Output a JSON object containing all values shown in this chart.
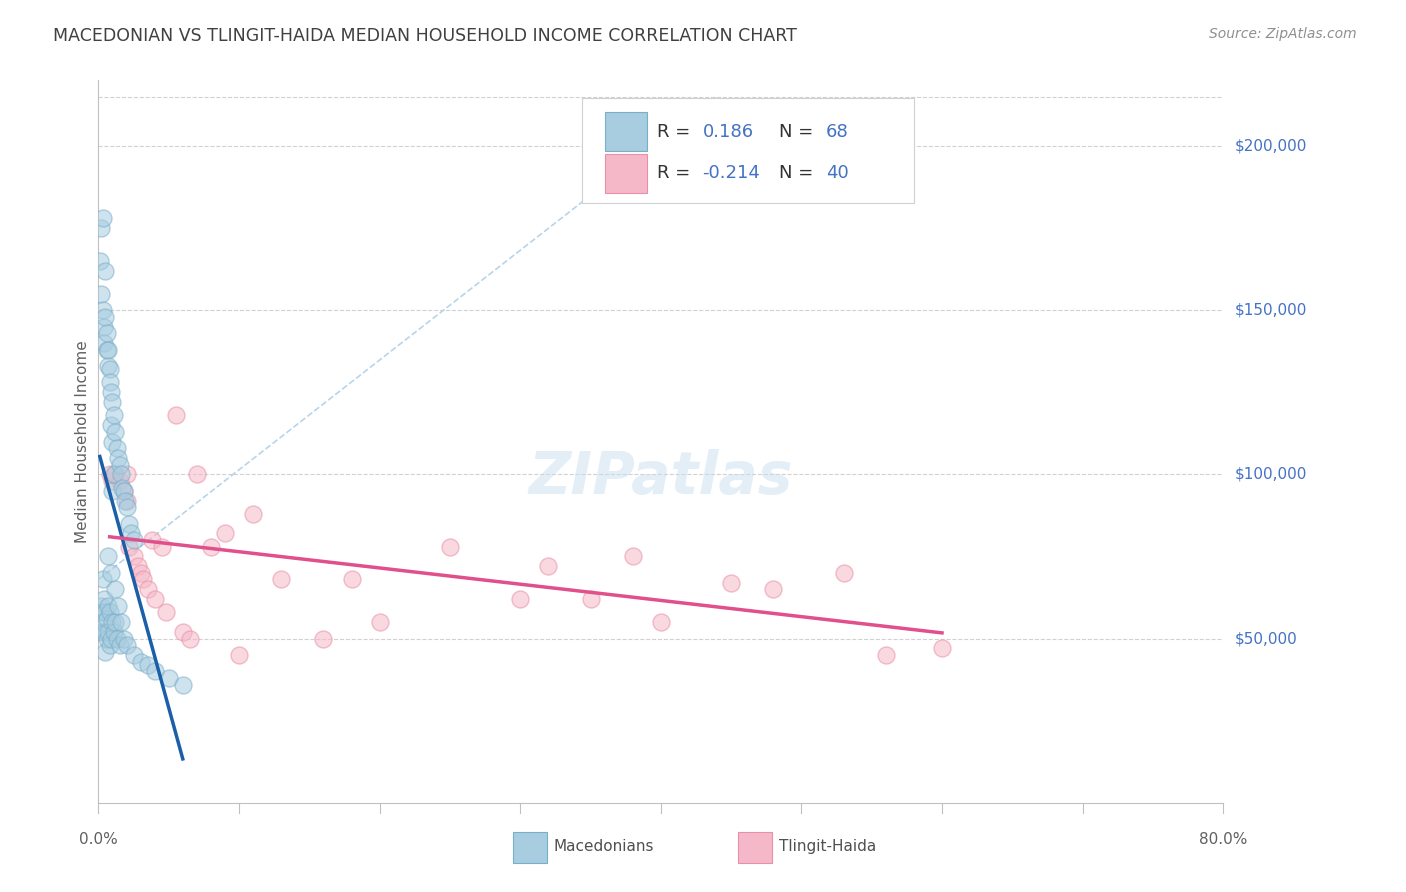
{
  "title": "MACEDONIAN VS TLINGIT-HAIDA MEDIAN HOUSEHOLD INCOME CORRELATION CHART",
  "source": "Source: ZipAtlas.com",
  "ylabel": "Median Household Income",
  "xlim": [
    0.0,
    0.8
  ],
  "ylim": [
    0,
    220000
  ],
  "ytick_vals": [
    50000,
    100000,
    150000,
    200000
  ],
  "ytick_labels": [
    "$50,000",
    "$100,000",
    "$150,000",
    "$200,000"
  ],
  "top_line_y": 215000,
  "mac_color_fill": "#a8cce0",
  "mac_color_edge": "#7aafc8",
  "mac_line_color": "#1a5fa8",
  "tlin_color_fill": "#f5b8c8",
  "tlin_color_edge": "#e890a8",
  "tlin_line_color": "#e0508c",
  "dash_color": "#b0d0e8",
  "grid_color": "#cccccc",
  "bg_color": "#ffffff",
  "title_color": "#404040",
  "right_label_color": "#4472c4",
  "source_color": "#909090",
  "leg_r_color": "#333333",
  "leg_val_color": "#4472c4",
  "mac_scatter_x": [
    0.001,
    0.001,
    0.002,
    0.002,
    0.002,
    0.002,
    0.003,
    0.003,
    0.003,
    0.003,
    0.004,
    0.004,
    0.004,
    0.005,
    0.005,
    0.005,
    0.005,
    0.005,
    0.006,
    0.006,
    0.006,
    0.006,
    0.007,
    0.007,
    0.007,
    0.007,
    0.008,
    0.008,
    0.008,
    0.008,
    0.009,
    0.009,
    0.009,
    0.01,
    0.01,
    0.01,
    0.01,
    0.011,
    0.011,
    0.011,
    0.012,
    0.012,
    0.013,
    0.013,
    0.014,
    0.015,
    0.015,
    0.016,
    0.017,
    0.018,
    0.019,
    0.02,
    0.022,
    0.023,
    0.025,
    0.007,
    0.009,
    0.012,
    0.014,
    0.016,
    0.018,
    0.02,
    0.025,
    0.03,
    0.035,
    0.04,
    0.05,
    0.06
  ],
  "mac_scatter_y": [
    165000,
    58000,
    175000,
    155000,
    60000,
    52000,
    178000,
    150000,
    68000,
    55000,
    145000,
    140000,
    62000,
    162000,
    148000,
    58000,
    52000,
    46000,
    143000,
    138000,
    56000,
    50000,
    138000,
    133000,
    60000,
    52000,
    132000,
    128000,
    58000,
    48000,
    125000,
    115000,
    50000,
    122000,
    110000,
    95000,
    55000,
    118000,
    100000,
    52000,
    113000,
    55000,
    108000,
    50000,
    105000,
    103000,
    48000,
    100000,
    96000,
    95000,
    92000,
    90000,
    85000,
    82000,
    80000,
    75000,
    70000,
    65000,
    60000,
    55000,
    50000,
    48000,
    45000,
    43000,
    42000,
    40000,
    38000,
    36000
  ],
  "tlin_scatter_x": [
    0.008,
    0.01,
    0.012,
    0.015,
    0.018,
    0.02,
    0.02,
    0.022,
    0.025,
    0.028,
    0.03,
    0.032,
    0.035,
    0.038,
    0.04,
    0.045,
    0.048,
    0.055,
    0.06,
    0.065,
    0.07,
    0.08,
    0.09,
    0.1,
    0.11,
    0.13,
    0.16,
    0.18,
    0.2,
    0.25,
    0.3,
    0.32,
    0.35,
    0.38,
    0.4,
    0.45,
    0.48,
    0.53,
    0.56,
    0.6
  ],
  "tlin_scatter_y": [
    100000,
    98000,
    100000,
    98000,
    95000,
    100000,
    92000,
    78000,
    75000,
    72000,
    70000,
    68000,
    65000,
    80000,
    62000,
    78000,
    58000,
    118000,
    52000,
    50000,
    100000,
    78000,
    82000,
    45000,
    88000,
    68000,
    50000,
    68000,
    55000,
    78000,
    62000,
    72000,
    62000,
    75000,
    55000,
    67000,
    65000,
    70000,
    45000,
    47000
  ]
}
